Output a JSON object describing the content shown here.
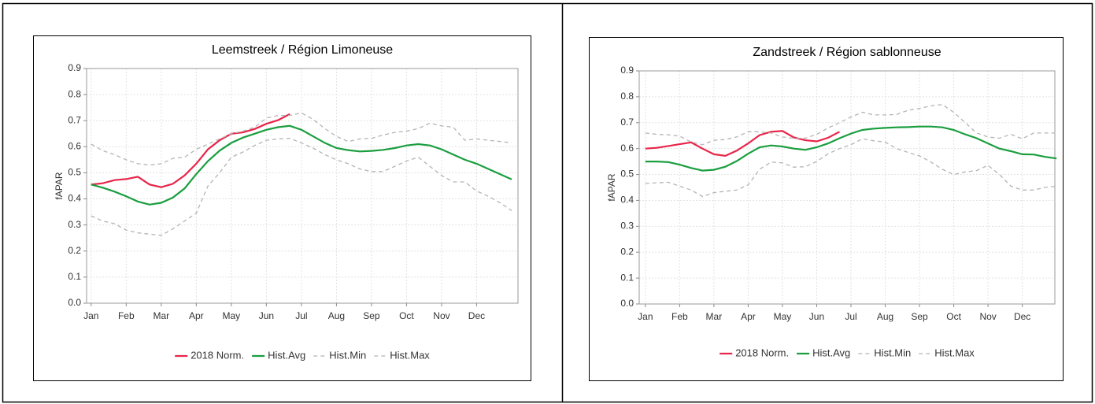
{
  "chart_data": [
    {
      "type": "line",
      "title": "Leemstreek / Région Limoneuse",
      "ylabel": "fAPAR",
      "xlim": [
        -0.13,
        12.18
      ],
      "xticks": [
        {
          "value": 0,
          "label": "Jan"
        },
        {
          "value": 1,
          "label": "Feb"
        },
        {
          "value": 2,
          "label": "Mar"
        },
        {
          "value": 3,
          "label": "Apr"
        },
        {
          "value": 4,
          "label": "May"
        },
        {
          "value": 5,
          "label": "Jun"
        },
        {
          "value": 6,
          "label": "Jul"
        },
        {
          "value": 7,
          "label": "Aug"
        },
        {
          "value": 8,
          "label": "Sep"
        },
        {
          "value": 9,
          "label": "Oct"
        },
        {
          "value": 10,
          "label": "Nov"
        },
        {
          "value": 11,
          "label": "Dec"
        }
      ],
      "ylim": [
        0,
        0.9
      ],
      "yticks": [
        {
          "value": 0,
          "label": "0.0"
        },
        0.1,
        0.2,
        0.3,
        0.4,
        0.5,
        0.6,
        0.7,
        0.8,
        0.9
      ],
      "grid": true,
      "legend": "bottom",
      "x": [
        0,
        0.333,
        0.667,
        1,
        1.333,
        1.667,
        2,
        2.333,
        2.667,
        3,
        3.333,
        3.667,
        4,
        4.333,
        4.667,
        5,
        5.333,
        5.667,
        6,
        6.333,
        6.667,
        7,
        7.333,
        7.667,
        8,
        8.333,
        8.667,
        9,
        9.333,
        9.667,
        10,
        10.333,
        10.667,
        11,
        11.333,
        11.667,
        12
      ],
      "series": [
        {
          "name": "2018 Norm.",
          "color": "#e8254a",
          "style": "solid",
          "values": [
            0.455,
            0.46,
            0.472,
            0.476,
            0.485,
            0.455,
            0.445,
            0.458,
            0.49,
            0.535,
            0.59,
            0.625,
            0.65,
            0.655,
            0.668,
            0.688,
            0.702,
            0.725,
            null,
            null,
            null,
            null,
            null,
            null,
            null,
            null,
            null,
            null,
            null,
            null,
            null,
            null,
            null,
            null,
            null,
            null,
            null
          ]
        },
        {
          "name": "Hist.Avg",
          "color": "#1a9e3f",
          "style": "solid",
          "values": [
            0.455,
            0.443,
            0.428,
            0.41,
            0.39,
            0.378,
            0.385,
            0.405,
            0.44,
            0.495,
            0.545,
            0.585,
            0.615,
            0.635,
            0.65,
            0.665,
            0.675,
            0.68,
            0.665,
            0.64,
            0.615,
            0.595,
            0.587,
            0.582,
            0.584,
            0.588,
            0.595,
            0.605,
            0.61,
            0.605,
            0.59,
            0.57,
            0.55,
            0.535,
            0.515,
            0.495,
            0.475
          ]
        },
        {
          "name": "Hist.Min",
          "color": "#b4b4b4",
          "style": "dashed",
          "values": [
            0.335,
            0.315,
            0.305,
            0.28,
            0.27,
            0.265,
            0.26,
            0.285,
            0.315,
            0.345,
            0.45,
            0.5,
            0.56,
            0.58,
            0.605,
            0.625,
            0.63,
            0.632,
            0.615,
            0.595,
            0.57,
            0.55,
            0.535,
            0.515,
            0.505,
            0.505,
            0.525,
            0.545,
            0.56,
            0.525,
            0.49,
            0.465,
            0.465,
            0.43,
            0.41,
            0.385,
            0.355
          ]
        },
        {
          "name": "Hist.Max",
          "color": "#b4b4b4",
          "style": "dashed",
          "values": [
            0.61,
            0.585,
            0.57,
            0.55,
            0.535,
            0.53,
            0.535,
            0.555,
            0.56,
            0.59,
            0.61,
            0.63,
            0.65,
            0.66,
            0.675,
            0.71,
            0.72,
            0.72,
            0.73,
            0.705,
            0.67,
            0.64,
            0.62,
            0.63,
            0.632,
            0.645,
            0.655,
            0.66,
            0.67,
            0.69,
            0.68,
            0.675,
            0.625,
            0.63,
            0.625,
            0.62,
            0.615
          ]
        }
      ]
    },
    {
      "type": "line",
      "title": "Zandstreek / Région sablonneuse",
      "ylabel": "fAPAR",
      "xlim": [
        -0.18,
        11.95
      ],
      "xticks": [
        {
          "value": 0,
          "label": "Jan"
        },
        {
          "value": 1,
          "label": "Feb"
        },
        {
          "value": 2,
          "label": "Mar"
        },
        {
          "value": 3,
          "label": "Apr"
        },
        {
          "value": 4,
          "label": "May"
        },
        {
          "value": 5,
          "label": "Jun"
        },
        {
          "value": 6,
          "label": "Jul"
        },
        {
          "value": 7,
          "label": "Aug"
        },
        {
          "value": 8,
          "label": "Sep"
        },
        {
          "value": 9,
          "label": "Oct"
        },
        {
          "value": 10,
          "label": "Nov"
        },
        {
          "value": 11,
          "label": "Dec"
        }
      ],
      "ylim": [
        0,
        0.9
      ],
      "yticks": [
        {
          "value": 0,
          "label": "0.0"
        },
        0.1,
        0.2,
        0.3,
        0.4,
        0.5,
        0.6,
        0.7,
        0.8,
        0.9
      ],
      "grid": true,
      "legend": "bottom",
      "x": [
        0,
        0.333,
        0.667,
        1,
        1.333,
        1.667,
        2,
        2.333,
        2.667,
        3,
        3.333,
        3.667,
        4,
        4.333,
        4.667,
        5,
        5.333,
        5.667,
        6,
        6.333,
        6.667,
        7,
        7.333,
        7.667,
        8,
        8.333,
        8.667,
        9,
        9.333,
        9.667,
        10,
        10.333,
        10.667,
        11,
        11.333,
        11.667,
        12
      ],
      "series": [
        {
          "name": "2018 Norm.",
          "color": "#e8254a",
          "style": "solid",
          "values": [
            0.6,
            0.603,
            0.61,
            0.617,
            0.624,
            0.6,
            0.578,
            0.572,
            0.592,
            0.62,
            0.652,
            0.665,
            0.668,
            0.643,
            0.632,
            0.628,
            0.642,
            0.665,
            null,
            null,
            null,
            null,
            null,
            null,
            null,
            null,
            null,
            null,
            null,
            null,
            null,
            null,
            null,
            null,
            null,
            null,
            null
          ]
        },
        {
          "name": "Hist.Avg",
          "color": "#1a9e3f",
          "style": "solid",
          "values": [
            0.55,
            0.55,
            0.548,
            0.538,
            0.525,
            0.515,
            0.518,
            0.53,
            0.552,
            0.58,
            0.605,
            0.612,
            0.608,
            0.6,
            0.595,
            0.605,
            0.62,
            0.64,
            0.658,
            0.672,
            0.677,
            0.68,
            0.682,
            0.683,
            0.685,
            0.685,
            0.682,
            0.672,
            0.655,
            0.64,
            0.62,
            0.6,
            0.59,
            0.578,
            0.577,
            0.568,
            0.562
          ]
        },
        {
          "name": "Hist.Min",
          "color": "#b4b4b4",
          "style": "dashed",
          "values": [
            0.465,
            0.468,
            0.47,
            0.455,
            0.44,
            0.415,
            0.43,
            0.435,
            0.44,
            0.46,
            0.52,
            0.548,
            0.545,
            0.528,
            0.53,
            0.55,
            0.58,
            0.6,
            0.615,
            0.638,
            0.63,
            0.625,
            0.6,
            0.585,
            0.572,
            0.548,
            0.52,
            0.5,
            0.51,
            0.515,
            0.535,
            0.5,
            0.455,
            0.44,
            0.44,
            0.45,
            0.455
          ]
        },
        {
          "name": "Hist.Max",
          "color": "#b4b4b4",
          "style": "dashed",
          "values": [
            0.66,
            0.655,
            0.653,
            0.648,
            0.625,
            0.615,
            0.632,
            0.635,
            0.645,
            0.665,
            0.665,
            0.66,
            0.645,
            0.64,
            0.64,
            0.655,
            0.68,
            0.7,
            0.722,
            0.74,
            0.73,
            0.73,
            0.732,
            0.748,
            0.755,
            0.765,
            0.77,
            0.74,
            0.7,
            0.66,
            0.645,
            0.64,
            0.655,
            0.638,
            0.66,
            0.66,
            0.66
          ]
        }
      ]
    }
  ]
}
